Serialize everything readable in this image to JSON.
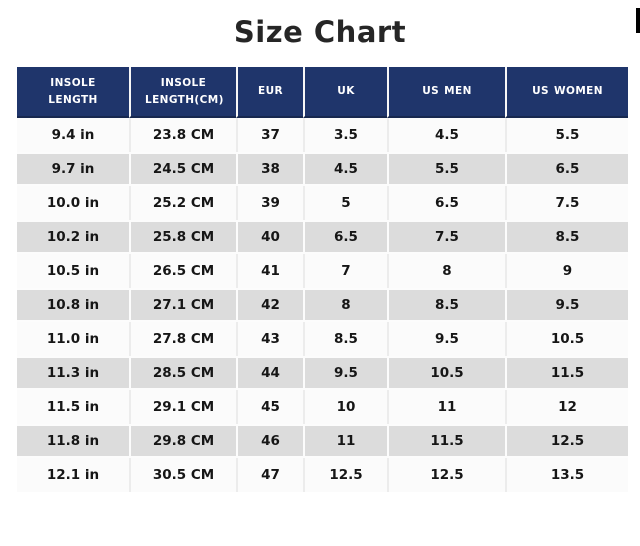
{
  "chart_data": {
    "type": "table",
    "title": "Size Chart",
    "columns": [
      "INSOLE LENGTH",
      "INSOLE LENGTH(CM)",
      "EUR",
      "UK",
      "US MEN",
      "US WOMEN"
    ],
    "rows": [
      [
        "9.4 in",
        "23.8 CM",
        "37",
        "3.5",
        "4.5",
        "5.5"
      ],
      [
        "9.7 in",
        "24.5 CM",
        "38",
        "4.5",
        "5.5",
        "6.5"
      ],
      [
        "10.0 in",
        "25.2 CM",
        "39",
        "5",
        "6.5",
        "7.5"
      ],
      [
        "10.2 in",
        "25.8 CM",
        "40",
        "6.5",
        "7.5",
        "8.5"
      ],
      [
        "10.5 in",
        "26.5 CM",
        "41",
        "7",
        "8",
        "9"
      ],
      [
        "10.8 in",
        "27.1 CM",
        "42",
        "8",
        "8.5",
        "9.5"
      ],
      [
        "11.0 in",
        "27.8 CM",
        "43",
        "8.5",
        "9.5",
        "10.5"
      ],
      [
        "11.3 in",
        "28.5 CM",
        "44",
        "9.5",
        "10.5",
        "11.5"
      ],
      [
        "11.5 in",
        "29.1 CM",
        "45",
        "10",
        "11",
        "12"
      ],
      [
        "11.8 in",
        "29.8 CM",
        "46",
        "11",
        "11.5",
        "12.5"
      ],
      [
        "12.1 in",
        "30.5 CM",
        "47",
        "12.5",
        "12.5",
        "13.5"
      ]
    ],
    "layout": {
      "legend": "none",
      "grid": "alternating-row-shading",
      "header_position": "top"
    }
  },
  "colors": {
    "header_bg": "#1f356b",
    "header_text": "#ffffff",
    "header_bottom_edge": "#17284f",
    "row_bg": "#fbfbfb",
    "row_alt_bg": "#dcdcdc",
    "title_text": "#262626",
    "page_bg": "#ffffff",
    "edge_bar": "#000000"
  }
}
